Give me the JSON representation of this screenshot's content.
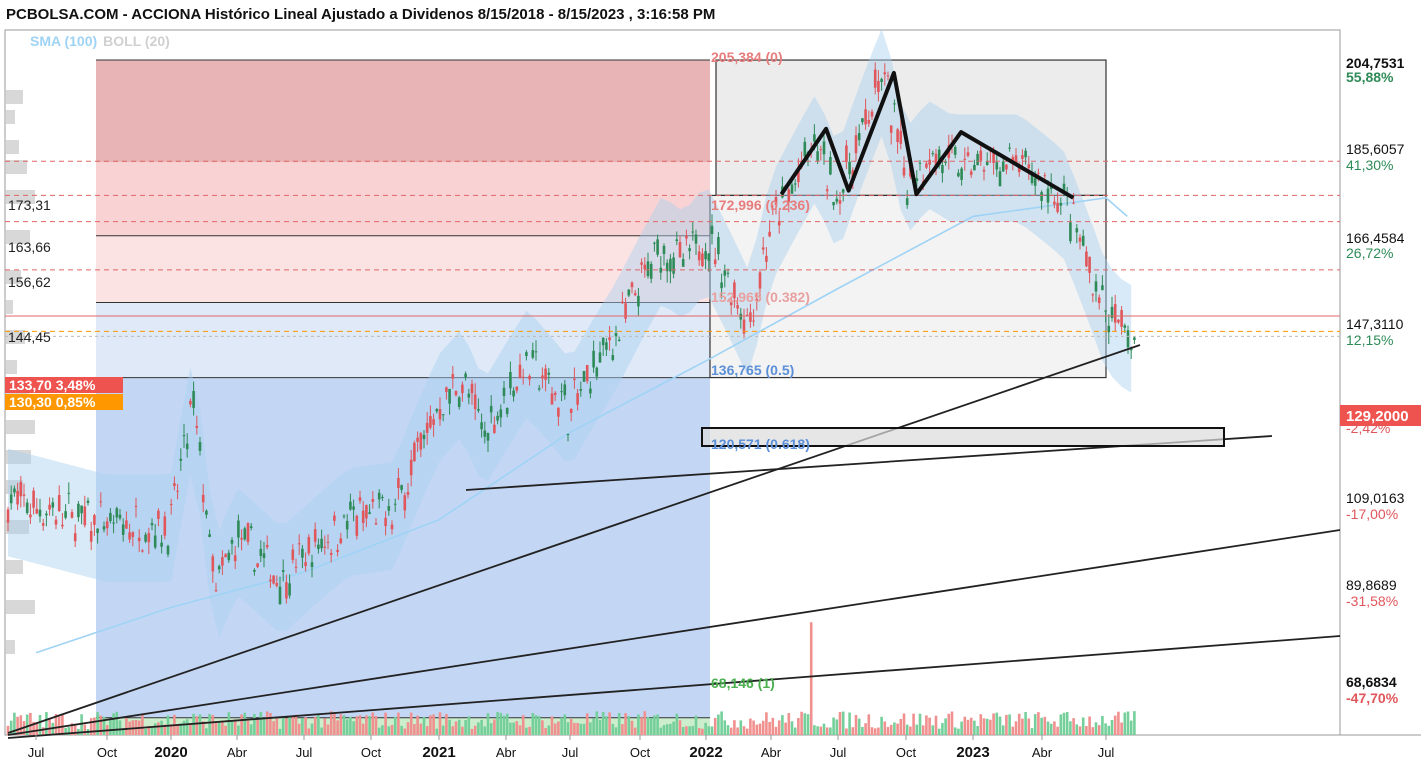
{
  "title": "PCBOLSA.COM - ACCIONA Histórico Lineal Ajustado a Dividenos 8/15/2018 - 8/15/2023 , 3:16:58 PM",
  "indicators": {
    "sma": "SMA (100)",
    "boll": "BOLL (20)"
  },
  "colors": {
    "sma": "#9fd3f5",
    "boll": "#cfcfcf",
    "up": "#2e8b57",
    "down": "#e0565b",
    "green_pct": "#2e8b57",
    "red_pct": "#e0565b",
    "fib": "#e87d7d"
  },
  "chart_data": {
    "type": "candlestick",
    "y_scale": "log",
    "ylim": [
      66.2,
      216
    ],
    "x_tick_labels": [
      "Jul",
      "Oct",
      "2020",
      "Abr",
      "Jul",
      "Oct",
      "2021",
      "Abr",
      "Jul",
      "Oct",
      "2022",
      "Abr",
      "Jul",
      "Oct",
      "2023",
      "Abr",
      "Jul"
    ],
    "y_axis_labels": [
      {
        "price": "204,7531",
        "pct": "55,88%",
        "pct_color": "green",
        "bold": true
      },
      {
        "price": "185,6057",
        "pct": "41,30%",
        "pct_color": "green",
        "bold": false
      },
      {
        "price": "166,4584",
        "pct": "26,72%",
        "pct_color": "green",
        "bold": false
      },
      {
        "price": "147,3110",
        "pct": "12,15%",
        "pct_color": "green",
        "bold": false
      },
      {
        "price": "109,0163",
        "pct": "-17,00%",
        "pct_color": "red",
        "bold": false
      },
      {
        "price": "89,8689",
        "pct": "-31,58%",
        "pct_color": "red",
        "bold": false
      },
      {
        "price": "68,6834",
        "pct": "-47,70%",
        "pct_color": "red",
        "bold": true
      }
    ],
    "current_price": "129,2000",
    "current_pct": "-2,42%",
    "left_levels": [
      "173,31",
      "163,66",
      "156,62",
      "144,45"
    ],
    "price_tags": [
      {
        "text": "133,70  3,48%",
        "color": "#ef5350"
      },
      {
        "text": "130,30  0,85%",
        "color": "#ff9800"
      }
    ],
    "fibonacci": [
      {
        "label": "205,384 (0)",
        "value": 205.384
      },
      {
        "label": "172,996 (0.236)",
        "value": 172.996
      },
      {
        "label": "152,965 (0.382)",
        "value": 152.965
      },
      {
        "label": "136,765 (0.5)",
        "value": 136.765
      },
      {
        "label": "120,571 (0.618)",
        "value": 120.571
      },
      {
        "label": "68,146 (1)",
        "value": 68.146
      }
    ],
    "dashed_levels": [
      173.31,
      163.66,
      156.62,
      144.45
    ],
    "pattern_points": [
      {
        "date": "2022-04",
        "value": 164
      },
      {
        "date": "2022-06",
        "value": 183
      },
      {
        "date": "2022-07",
        "value": 165
      },
      {
        "date": "2022-09",
        "value": 201
      },
      {
        "date": "2022-10",
        "value": 164
      },
      {
        "date": "2022-12",
        "value": 182
      },
      {
        "date": "2023-05",
        "value": 163
      }
    ]
  }
}
